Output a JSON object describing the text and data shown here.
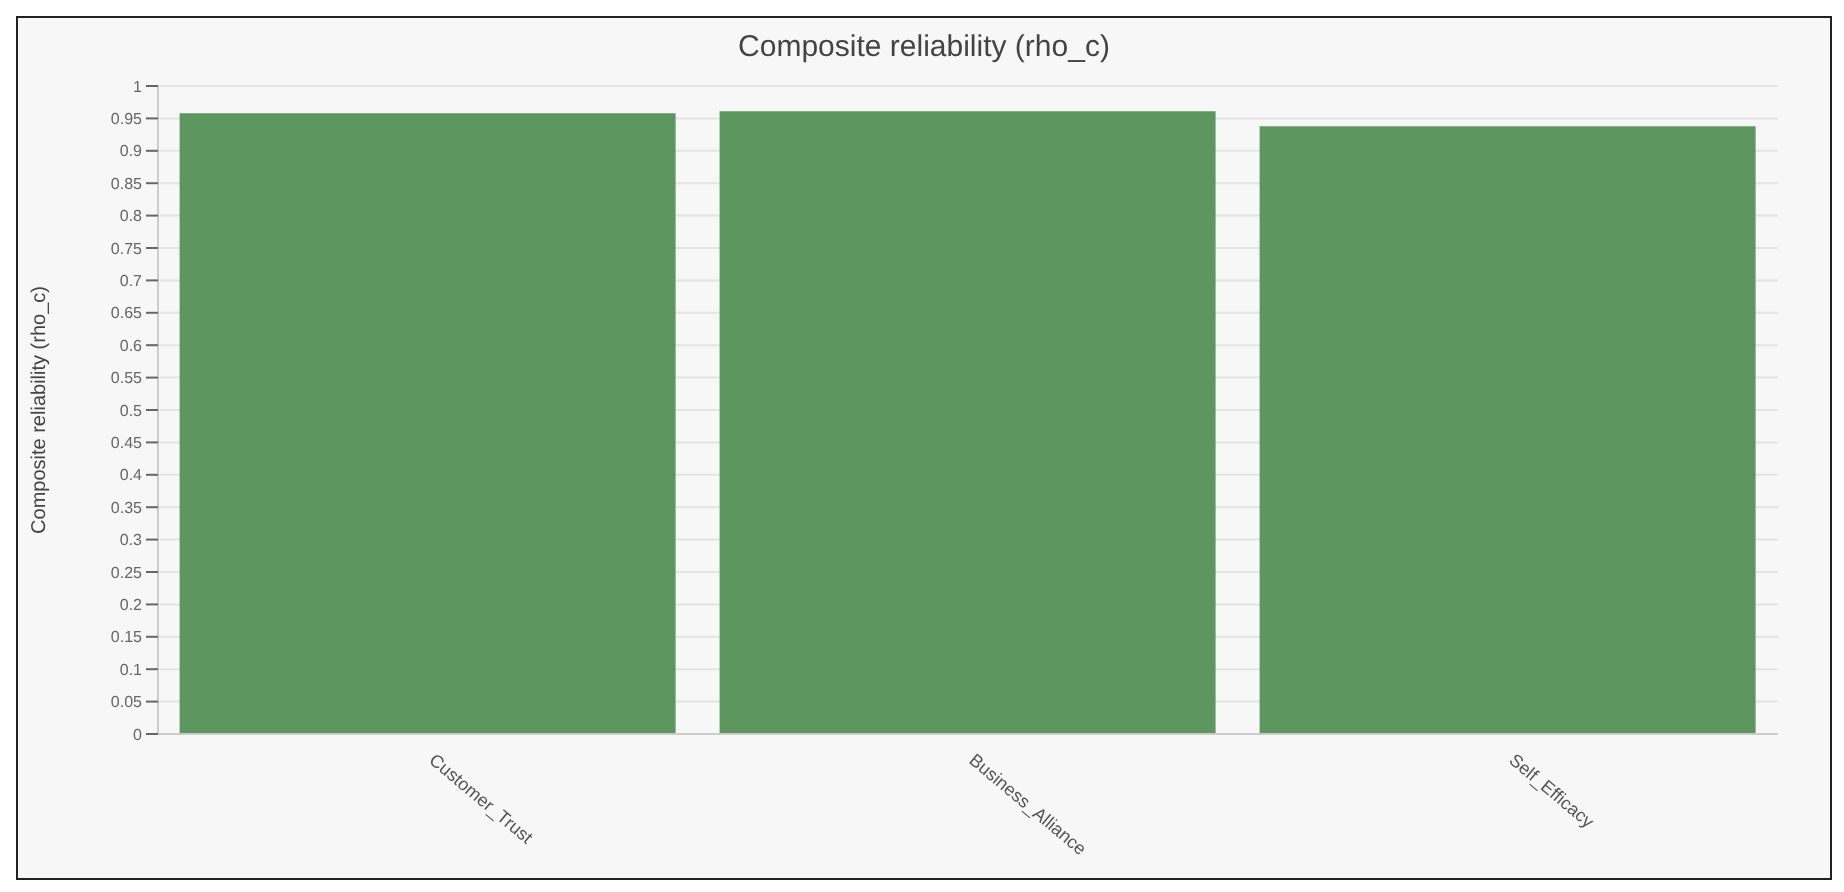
{
  "chart_data": {
    "type": "bar",
    "title": "Composite reliability (rho_c)",
    "ylabel": "Composite reliability (rho_c)",
    "categories": [
      "Customer_Trust",
      "Business_Alliance",
      "Self_Efficacy"
    ],
    "values": [
      0.958,
      0.961,
      0.938
    ],
    "color": "#5e9660",
    "ylim": [
      0,
      1
    ],
    "yticks": [
      0,
      0.05,
      0.1,
      0.15,
      0.2,
      0.25,
      0.3,
      0.35,
      0.4,
      0.45,
      0.5,
      0.55,
      0.6,
      0.65,
      0.7,
      0.75,
      0.8,
      0.85,
      0.9,
      0.95,
      1
    ],
    "grid": "y"
  }
}
